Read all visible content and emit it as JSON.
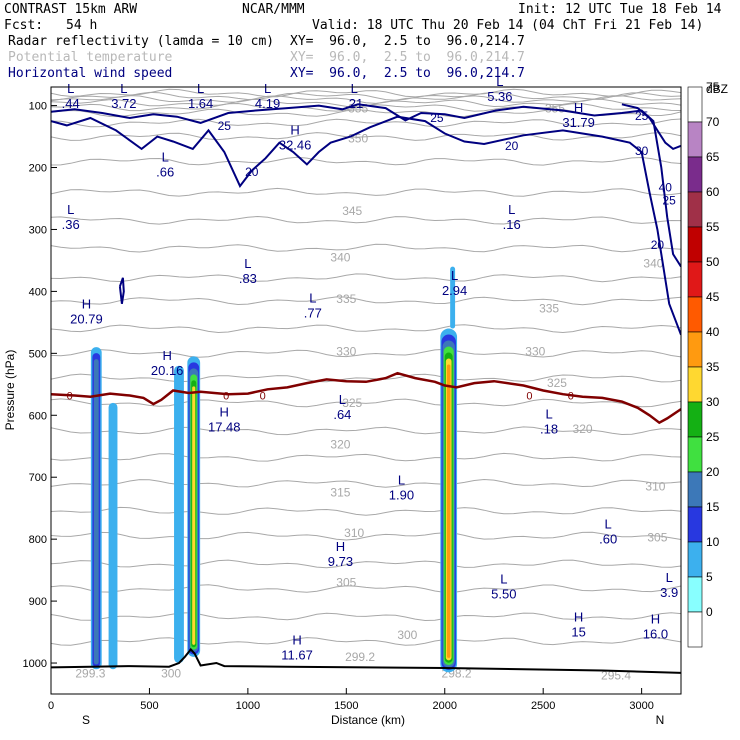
{
  "header": {
    "model": "CONTRAST 15km ARW",
    "center": "NCAR/MMM",
    "init": "Init: 12 UTC Tue 18 Feb 14",
    "fcst_label": "Fcst:",
    "fcst_value": "54 h",
    "valid": "Valid: 18 UTC Thu 20 Feb 14 (04 ChT Fri 21 Feb 14)",
    "fields": [
      {
        "name": "Radar reflectivity (lamda = 10 cm)",
        "xy": "XY=  96.0,  2.5 to  96.0,214.7"
      },
      {
        "name": "Potential temperature",
        "xy": "XY=  96.0,  2.5 to  96.0,214.7"
      },
      {
        "name": "Horizontal wind speed",
        "xy": "XY=  96.0,  2.5 to  96.0,214.7"
      }
    ]
  },
  "chart_data": {
    "type": "cross-section",
    "xlabel": "Distance (km)",
    "ylabel": "Pressure (hPa)",
    "xlim": [
      0,
      3200
    ],
    "ylim": [
      1050,
      70
    ],
    "x_ticks": [
      0,
      500,
      1000,
      1500,
      2000,
      2500,
      3000
    ],
    "y_ticks": [
      100,
      200,
      300,
      400,
      500,
      600,
      700,
      800,
      900,
      1000
    ],
    "x_end_labels": {
      "left": "S",
      "right": "N"
    },
    "colorbar": {
      "unit": "dBZ",
      "levels": [
        75,
        70,
        65,
        60,
        55,
        50,
        45,
        40,
        35,
        30,
        25,
        20,
        15,
        10,
        5,
        0
      ],
      "colors": [
        "#ffffff",
        "#b884c4",
        "#7a2c8c",
        "#a03048",
        "#c00000",
        "#e01818",
        "#ff5a00",
        "#ff9a10",
        "#ffd830",
        "#14b014",
        "#40e040",
        "#3c78b8",
        "#2838e0",
        "#3cb0ee",
        "#88ffff",
        "#ffffff"
      ]
    },
    "theta_labels": [
      {
        "x": 1560,
        "p": 105,
        "text": "355"
      },
      {
        "x": 2560,
        "p": 105,
        "text": "355"
      },
      {
        "x": 1560,
        "p": 153,
        "text": "350"
      },
      {
        "x": 1530,
        "p": 270,
        "text": "345"
      },
      {
        "x": 1470,
        "p": 345,
        "text": "340"
      },
      {
        "x": 3060,
        "p": 355,
        "text": "340"
      },
      {
        "x": 1500,
        "p": 412,
        "text": "335"
      },
      {
        "x": 2530,
        "p": 428,
        "text": "335"
      },
      {
        "x": 1500,
        "p": 497,
        "text": "330"
      },
      {
        "x": 2460,
        "p": 497,
        "text": "330"
      },
      {
        "x": 1530,
        "p": 580,
        "text": "325"
      },
      {
        "x": 2570,
        "p": 548,
        "text": "325"
      },
      {
        "x": 1470,
        "p": 647,
        "text": "320"
      },
      {
        "x": 2700,
        "p": 622,
        "text": "320"
      },
      {
        "x": 1470,
        "p": 725,
        "text": "315"
      },
      {
        "x": 3070,
        "p": 715,
        "text": "310"
      },
      {
        "x": 1540,
        "p": 790,
        "text": "310"
      },
      {
        "x": 3080,
        "p": 797,
        "text": "305"
      },
      {
        "x": 1500,
        "p": 870,
        "text": "305"
      },
      {
        "x": 1810,
        "p": 955,
        "text": "300"
      },
      {
        "x": 2870,
        "p": 1020,
        "text": "295.4"
      },
      {
        "x": 1570,
        "p": 990,
        "text": "299.2"
      },
      {
        "x": 200,
        "p": 1017,
        "text": "299.3"
      },
      {
        "x": 2060,
        "p": 1017,
        "text": "298.2"
      },
      {
        "x": 610,
        "p": 1017,
        "text": "300"
      }
    ],
    "wind_labels": [
      {
        "x": 880,
        "p": 133,
        "text": "25"
      },
      {
        "x": 1960,
        "p": 120,
        "text": "25"
      },
      {
        "x": 3000,
        "p": 117,
        "text": "25"
      },
      {
        "x": 1020,
        "p": 207,
        "text": "20"
      },
      {
        "x": 2340,
        "p": 165,
        "text": "20"
      },
      {
        "x": 3000,
        "p": 173,
        "text": "30"
      },
      {
        "x": 3140,
        "p": 253,
        "text": "25"
      },
      {
        "x": 3080,
        "p": 325,
        "text": "20"
      },
      {
        "x": 3120,
        "p": 232,
        "text": "40"
      }
    ],
    "freezing_labels": [
      {
        "x": 95,
        "p": 568,
        "text": "0"
      },
      {
        "x": 890,
        "p": 568,
        "text": "0"
      },
      {
        "x": 1075,
        "p": 568,
        "text": "0"
      },
      {
        "x": 2430,
        "p": 568,
        "text": "0"
      },
      {
        "x": 2640,
        "p": 568,
        "text": "0"
      }
    ],
    "hl_labels": [
      {
        "x": 100,
        "p": 80,
        "mark": "L",
        "value": ".44"
      },
      {
        "x": 370,
        "p": 80,
        "mark": "L",
        "value": "3.72"
      },
      {
        "x": 760,
        "p": 80,
        "mark": "L",
        "value": "1.64"
      },
      {
        "x": 1100,
        "p": 80,
        "mark": "L",
        "value": "4.19"
      },
      {
        "x": 1540,
        "p": 80,
        "mark": "L",
        "value": ".21"
      },
      {
        "x": 2280,
        "p": 68,
        "mark": "L",
        "value": "5.36"
      },
      {
        "x": 1240,
        "p": 147,
        "mark": "H",
        "value": "32.46"
      },
      {
        "x": 2680,
        "p": 110,
        "mark": "H",
        "value": "31.79"
      },
      {
        "x": 580,
        "p": 190,
        "mark": "L",
        "value": ".66"
      },
      {
        "x": 100,
        "p": 275,
        "mark": "L",
        "value": ".36"
      },
      {
        "x": 2340,
        "p": 275,
        "mark": "L",
        "value": ".16"
      },
      {
        "x": 1000,
        "p": 362,
        "mark": "L",
        "value": ".83"
      },
      {
        "x": 2050,
        "p": 382,
        "mark": "L",
        "value": "2.94"
      },
      {
        "x": 1330,
        "p": 418,
        "mark": "L",
        "value": ".77"
      },
      {
        "x": 180,
        "p": 428,
        "mark": "H",
        "value": "20.79"
      },
      {
        "x": 590,
        "p": 511,
        "mark": "H",
        "value": "20.16"
      },
      {
        "x": 1480,
        "p": 582,
        "mark": "L",
        "value": ".64"
      },
      {
        "x": 880,
        "p": 602,
        "mark": "H",
        "value": "17.48"
      },
      {
        "x": 2530,
        "p": 605,
        "mark": "L",
        "value": ".18"
      },
      {
        "x": 1780,
        "p": 712,
        "mark": "L",
        "value": "1.90"
      },
      {
        "x": 2830,
        "p": 783,
        "mark": "L",
        "value": ".60"
      },
      {
        "x": 1470,
        "p": 819,
        "mark": "H",
        "value": "9.73"
      },
      {
        "x": 2300,
        "p": 872,
        "mark": "L",
        "value": "5.50"
      },
      {
        "x": 3140,
        "p": 869,
        "mark": "L",
        "value": "3.9"
      },
      {
        "x": 2680,
        "p": 933,
        "mark": "H",
        "value": "15"
      },
      {
        "x": 3070,
        "p": 936,
        "mark": "H",
        "value": "16.0"
      },
      {
        "x": 1250,
        "p": 970,
        "mark": "H",
        "value": "11.67"
      }
    ],
    "reflectivity_cells": [
      {
        "x": 230,
        "w": 55,
        "top": 490,
        "bottom": 1010,
        "max_dbz": 20
      },
      {
        "x": 315,
        "w": 45,
        "top": 580,
        "bottom": 1010,
        "max_dbz": 10
      },
      {
        "x": 650,
        "w": 50,
        "top": 520,
        "bottom": 1000,
        "max_dbz": 10
      },
      {
        "x": 725,
        "w": 65,
        "top": 505,
        "bottom": 990,
        "max_dbz": 35
      },
      {
        "x": 2020,
        "w": 85,
        "top": 460,
        "bottom": 1015,
        "max_dbz": 40
      },
      {
        "x": 2040,
        "w": 25,
        "top": 360,
        "bottom": 460,
        "max_dbz": 10
      }
    ]
  }
}
